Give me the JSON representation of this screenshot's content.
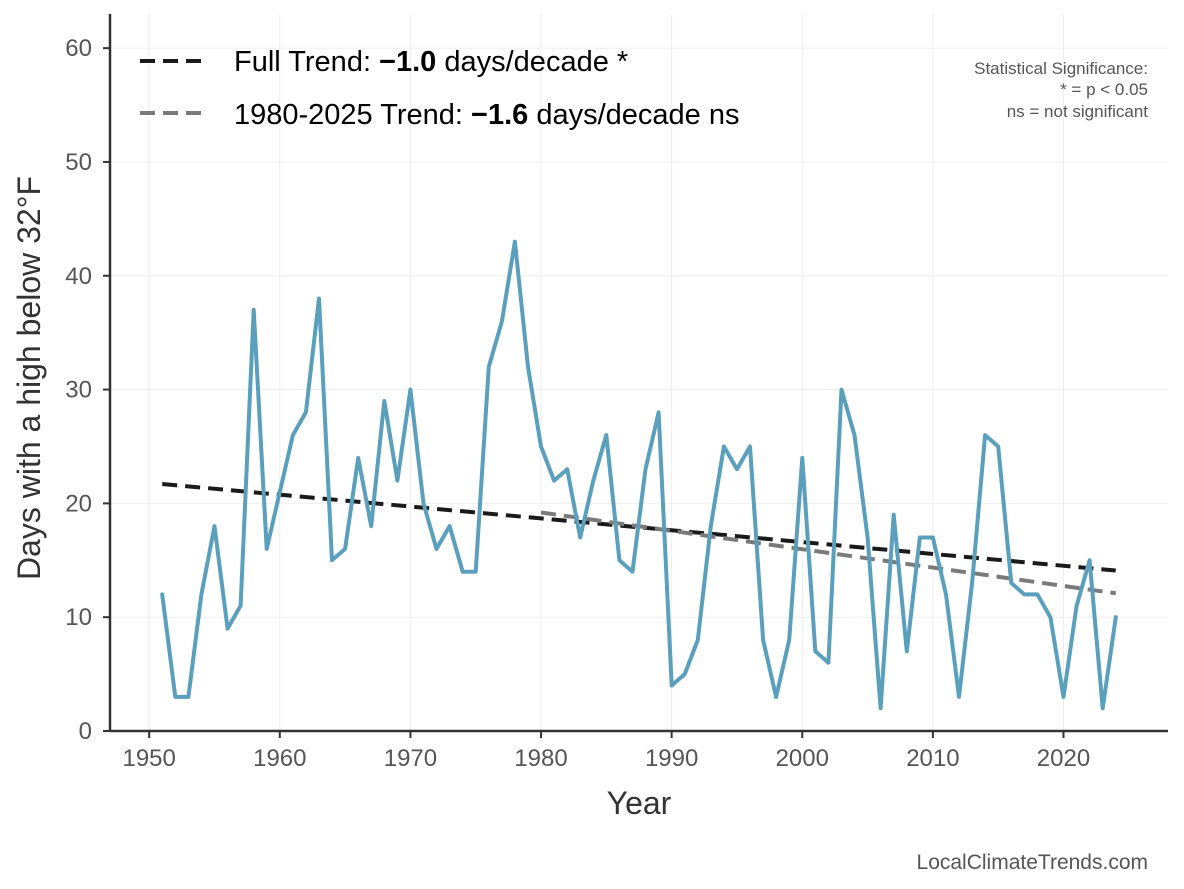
{
  "chart_data": {
    "type": "line",
    "xlabel": "Year",
    "ylabel": "Days with a high below 32°F",
    "xlim": [
      1947,
      2028
    ],
    "ylim": [
      0,
      63
    ],
    "x_ticks": [
      1950,
      1960,
      1970,
      1980,
      1990,
      2000,
      2010,
      2020
    ],
    "y_ticks": [
      0,
      10,
      20,
      30,
      40,
      50,
      60
    ],
    "grid": true,
    "series": [
      {
        "x": [
          1951,
          1952,
          1953,
          1954,
          1955,
          1956,
          1957,
          1958,
          1959,
          1960,
          1961,
          1962,
          1963,
          1964,
          1965,
          1966,
          1967,
          1968,
          1969,
          1970,
          1971,
          1972,
          1973,
          1974,
          1975,
          1976,
          1977,
          1978,
          1979,
          1980,
          1981,
          1982,
          1983,
          1984,
          1985,
          1986,
          1987,
          1988,
          1989,
          1990,
          1991,
          1992,
          1993,
          1994,
          1995,
          1996,
          1997,
          1998,
          1999,
          2000,
          2001,
          2002,
          2003,
          2004,
          2005,
          2006,
          2007,
          2008,
          2009,
          2010,
          2011,
          2012,
          2013,
          2014,
          2015,
          2016,
          2017,
          2018,
          2019,
          2020,
          2021,
          2022,
          2023,
          2024
        ],
        "values": [
          12,
          3,
          3,
          12,
          18,
          9,
          11,
          37,
          16,
          21,
          26,
          28,
          38,
          15,
          16,
          24,
          18,
          29,
          22,
          30,
          20,
          16,
          18,
          14,
          14,
          32,
          36,
          43,
          32,
          25,
          22,
          23,
          17,
          22,
          26,
          15,
          14,
          23,
          28,
          4,
          5,
          8,
          18,
          25,
          23,
          25,
          8,
          3,
          8,
          24,
          7,
          6,
          30,
          26,
          17,
          2,
          19,
          7,
          17,
          17,
          12,
          3,
          13,
          26,
          25,
          13,
          12,
          12,
          10,
          3,
          11,
          15,
          2,
          10
        ],
        "color": "#5a9fbc"
      }
    ],
    "trends": [
      {
        "label_prefix": "Full Trend: ",
        "value": "−1.0",
        "label_suffix": " days/decade *",
        "x": [
          1951,
          2024
        ],
        "y": [
          21.7,
          14.1
        ],
        "color": "#1a1a1a"
      },
      {
        "label_prefix": "1980-2025 Trend: ",
        "value": "−1.6",
        "label_suffix": " days/decade ns",
        "x": [
          1980,
          2024
        ],
        "y": [
          19.2,
          12.1
        ],
        "color": "#7a7a7a"
      }
    ],
    "significance_note": [
      "Statistical Significance:",
      "* = p < 0.05",
      "ns = not significant"
    ],
    "legend_position": "top-left"
  },
  "credit": "LocalClimateTrends.com"
}
